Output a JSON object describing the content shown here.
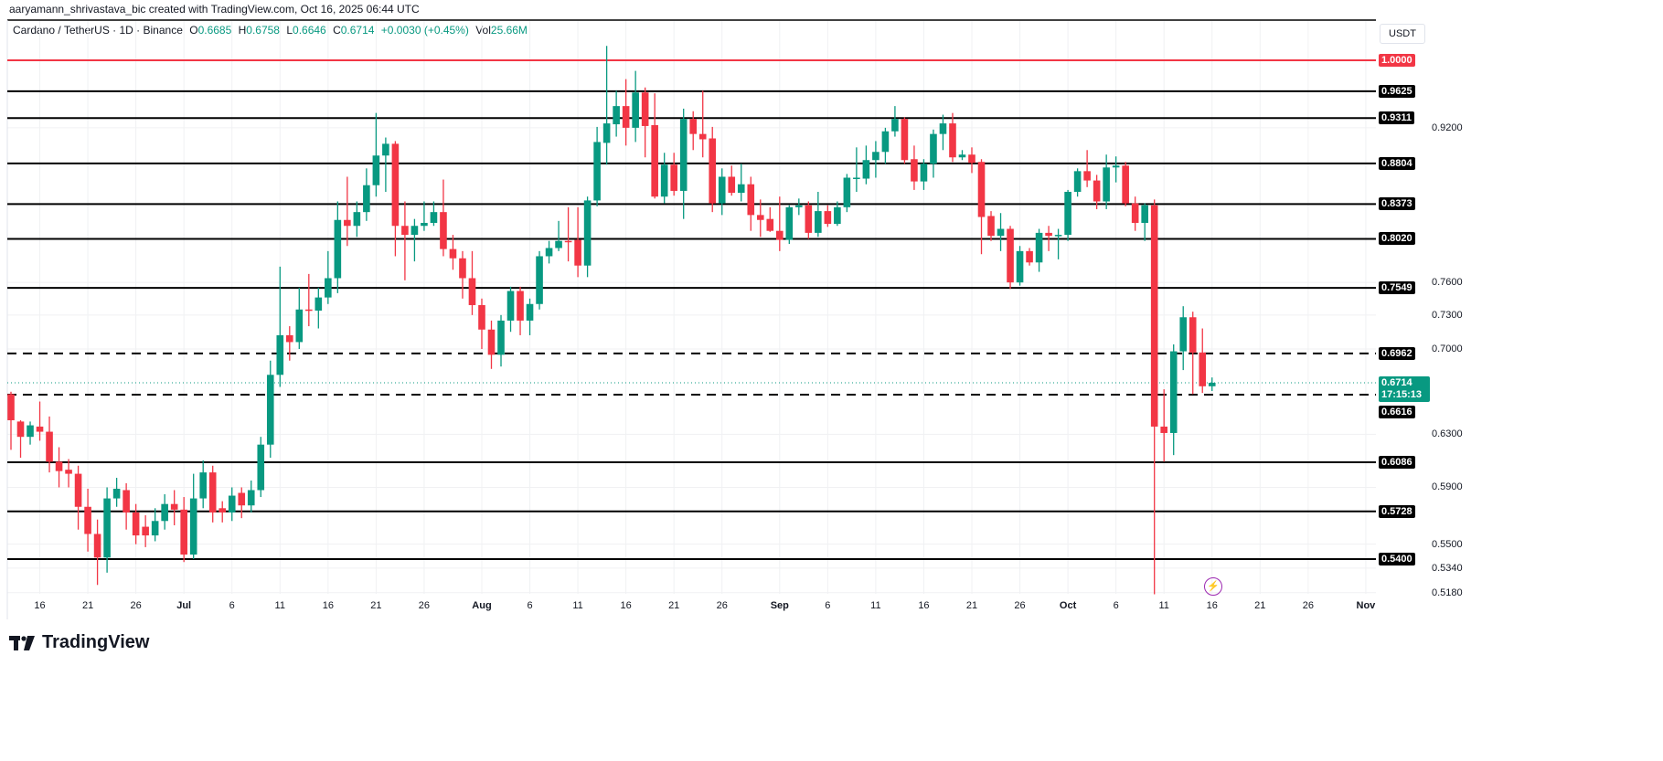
{
  "credit": "aaryamann_shrivastava_bic created with TradingView.com, Oct 16, 2025 06:44 UTC",
  "legend": {
    "symbol": "Cardano / TetherUS · 1D · Binance",
    "o_label": "O",
    "o": "0.6685",
    "h_label": "H",
    "h": "0.6758",
    "l_label": "L",
    "l": "0.6646",
    "c_label": "C",
    "c": "0.6714",
    "change": "+0.0030 (+0.45%)",
    "vol_label": "Vol",
    "vol": "25.66M"
  },
  "currency_button": "USDT",
  "current_price": {
    "value": "0.6714",
    "countdown": "17:15:13",
    "color": "#089981"
  },
  "logo_text": "TradingView",
  "alert_icon": "lightning-icon",
  "chart_data": {
    "type": "candlestick",
    "title": "",
    "scale": "log",
    "ylim": [
      0.518,
      1.04
    ],
    "grid": true,
    "colors": {
      "up": "#089981",
      "down": "#F23645"
    },
    "columns": [
      "date",
      "open",
      "high",
      "low",
      "close"
    ],
    "candles": [
      [
        "Jun 13",
        0.662,
        0.664,
        0.618,
        0.641
      ],
      [
        "Jun 14",
        0.64,
        0.641,
        0.612,
        0.628
      ],
      [
        "Jun 15",
        0.628,
        0.64,
        0.622,
        0.637
      ],
      [
        "Jun 16",
        0.636,
        0.656,
        0.625,
        0.632
      ],
      [
        "Jun 17",
        0.632,
        0.644,
        0.601,
        0.609
      ],
      [
        "Jun 18",
        0.609,
        0.62,
        0.59,
        0.602
      ],
      [
        "Jun 19",
        0.603,
        0.611,
        0.59,
        0.6
      ],
      [
        "Jun 20",
        0.6,
        0.606,
        0.56,
        0.576
      ],
      [
        "Jun 21",
        0.576,
        0.589,
        0.545,
        0.557
      ],
      [
        "Jun 22",
        0.557,
        0.567,
        0.523,
        0.541
      ],
      [
        "Jun 23",
        0.541,
        0.59,
        0.531,
        0.582
      ],
      [
        "Jun 24",
        0.582,
        0.597,
        0.576,
        0.589
      ],
      [
        "Jun 25",
        0.588,
        0.593,
        0.56,
        0.572
      ],
      [
        "Jun 26",
        0.572,
        0.578,
        0.55,
        0.556
      ],
      [
        "Jun 27",
        0.562,
        0.57,
        0.548,
        0.556
      ],
      [
        "Jun 28",
        0.556,
        0.575,
        0.552,
        0.566
      ],
      [
        "Jun 29",
        0.566,
        0.585,
        0.56,
        0.578
      ],
      [
        "Jun 30",
        0.578,
        0.588,
        0.563,
        0.574
      ],
      [
        "Jul 1",
        0.574,
        0.583,
        0.538,
        0.543
      ],
      [
        "Jul 2",
        0.543,
        0.6,
        0.54,
        0.582
      ],
      [
        "Jul 3",
        0.582,
        0.61,
        0.575,
        0.601
      ],
      [
        "Jul 4",
        0.601,
        0.606,
        0.565,
        0.572
      ],
      [
        "Jul 5",
        0.575,
        0.58,
        0.565,
        0.572
      ],
      [
        "Jul 6",
        0.572,
        0.59,
        0.566,
        0.584
      ],
      [
        "Jul 7",
        0.586,
        0.59,
        0.568,
        0.577
      ],
      [
        "Jul 8",
        0.577,
        0.595,
        0.572,
        0.588
      ],
      [
        "Jul 9",
        0.588,
        0.628,
        0.583,
        0.622
      ],
      [
        "Jul 10",
        0.622,
        0.69,
        0.612,
        0.678
      ],
      [
        "Jul 11",
        0.678,
        0.775,
        0.668,
        0.712
      ],
      [
        "Jul 12",
        0.712,
        0.72,
        0.69,
        0.706
      ],
      [
        "Jul 13",
        0.706,
        0.755,
        0.7,
        0.735
      ],
      [
        "Jul 14",
        0.735,
        0.768,
        0.72,
        0.734
      ],
      [
        "Jul 15",
        0.734,
        0.755,
        0.718,
        0.746
      ],
      [
        "Jul 16",
        0.746,
        0.79,
        0.74,
        0.764
      ],
      [
        "Jul 17",
        0.764,
        0.84,
        0.75,
        0.821
      ],
      [
        "Jul 18",
        0.821,
        0.866,
        0.795,
        0.815
      ],
      [
        "Jul 19",
        0.815,
        0.84,
        0.804,
        0.829
      ],
      [
        "Jul 20",
        0.829,
        0.875,
        0.82,
        0.857
      ],
      [
        "Jul 21",
        0.857,
        0.937,
        0.845,
        0.889
      ],
      [
        "Jul 22",
        0.889,
        0.909,
        0.85,
        0.902
      ],
      [
        "Jul 23",
        0.902,
        0.905,
        0.785,
        0.815
      ],
      [
        "Jul 24",
        0.815,
        0.84,
        0.762,
        0.806
      ],
      [
        "Jul 25",
        0.806,
        0.822,
        0.78,
        0.815
      ],
      [
        "Jul 26",
        0.815,
        0.84,
        0.81,
        0.818
      ],
      [
        "Jul 27",
        0.818,
        0.84,
        0.815,
        0.829
      ],
      [
        "Jul 28",
        0.829,
        0.863,
        0.785,
        0.792
      ],
      [
        "Jul 29",
        0.792,
        0.806,
        0.772,
        0.783
      ],
      [
        "Jul 30",
        0.783,
        0.79,
        0.745,
        0.764
      ],
      [
        "Jul 31",
        0.764,
        0.79,
        0.73,
        0.739
      ],
      [
        "Aug 1",
        0.739,
        0.745,
        0.7,
        0.717
      ],
      [
        "Aug 2",
        0.717,
        0.725,
        0.683,
        0.695
      ],
      [
        "Aug 3",
        0.695,
        0.73,
        0.685,
        0.725
      ],
      [
        "Aug 4",
        0.725,
        0.756,
        0.715,
        0.752
      ],
      [
        "Aug 5",
        0.752,
        0.756,
        0.712,
        0.725
      ],
      [
        "Aug 6",
        0.725,
        0.745,
        0.712,
        0.74
      ],
      [
        "Aug 7",
        0.74,
        0.79,
        0.735,
        0.785
      ],
      [
        "Aug 8",
        0.785,
        0.8,
        0.778,
        0.793
      ],
      [
        "Aug 9",
        0.793,
        0.82,
        0.79,
        0.8
      ],
      [
        "Aug 10",
        0.8,
        0.834,
        0.78,
        0.799
      ],
      [
        "Aug 11",
        0.801,
        0.834,
        0.765,
        0.776
      ],
      [
        "Aug 12",
        0.776,
        0.845,
        0.765,
        0.841
      ],
      [
        "Aug 13",
        0.841,
        0.921,
        0.835,
        0.904
      ],
      [
        "Aug 14",
        0.903,
        1.018,
        0.879,
        0.925
      ],
      [
        "Aug 15",
        0.924,
        0.963,
        0.91,
        0.945
      ],
      [
        "Aug 16",
        0.945,
        0.977,
        0.9,
        0.92
      ],
      [
        "Aug 17",
        0.92,
        0.987,
        0.904,
        0.961
      ],
      [
        "Aug 18",
        0.961,
        0.967,
        0.887,
        0.922
      ],
      [
        "Aug 19",
        0.923,
        0.96,
        0.843,
        0.845
      ],
      [
        "Aug 20",
        0.845,
        0.892,
        0.838,
        0.879
      ],
      [
        "Aug 21",
        0.879,
        0.892,
        0.846,
        0.851
      ],
      [
        "Aug 22",
        0.851,
        0.942,
        0.822,
        0.93
      ],
      [
        "Aug 23",
        0.93,
        0.939,
        0.895,
        0.913
      ],
      [
        "Aug 24",
        0.913,
        0.963,
        0.887,
        0.907
      ],
      [
        "Aug 25",
        0.908,
        0.921,
        0.829,
        0.838
      ],
      [
        "Aug 26",
        0.838,
        0.875,
        0.826,
        0.866
      ],
      [
        "Aug 27",
        0.866,
        0.878,
        0.846,
        0.849
      ],
      [
        "Aug 28",
        0.849,
        0.88,
        0.84,
        0.858
      ],
      [
        "Aug 29",
        0.858,
        0.866,
        0.81,
        0.826
      ],
      [
        "Aug 30",
        0.826,
        0.842,
        0.804,
        0.821
      ],
      [
        "Aug 31",
        0.822,
        0.834,
        0.809,
        0.81
      ],
      [
        "Sep 1",
        0.81,
        0.845,
        0.79,
        0.801
      ],
      [
        "Sep 2",
        0.801,
        0.836,
        0.797,
        0.834
      ],
      [
        "Sep 3",
        0.834,
        0.843,
        0.826,
        0.836
      ],
      [
        "Sep 4",
        0.836,
        0.84,
        0.802,
        0.808
      ],
      [
        "Sep 5",
        0.808,
        0.85,
        0.804,
        0.83
      ],
      [
        "Sep 6",
        0.83,
        0.836,
        0.814,
        0.817
      ],
      [
        "Sep 7",
        0.817,
        0.84,
        0.815,
        0.834
      ],
      [
        "Sep 8",
        0.834,
        0.869,
        0.829,
        0.865
      ],
      [
        "Sep 9",
        0.864,
        0.898,
        0.85,
        0.865
      ],
      [
        "Sep 10",
        0.864,
        0.9,
        0.858,
        0.884
      ],
      [
        "Sep 11",
        0.884,
        0.905,
        0.865,
        0.893
      ],
      [
        "Sep 12",
        0.893,
        0.92,
        0.88,
        0.916
      ],
      [
        "Sep 13",
        0.916,
        0.945,
        0.91,
        0.93
      ],
      [
        "Sep 14",
        0.93,
        0.932,
        0.88,
        0.884
      ],
      [
        "Sep 15",
        0.885,
        0.9,
        0.852,
        0.861
      ],
      [
        "Sep 16",
        0.861,
        0.885,
        0.852,
        0.88
      ],
      [
        "Sep 17",
        0.88,
        0.918,
        0.865,
        0.913
      ],
      [
        "Sep 18",
        0.913,
        0.935,
        0.895,
        0.925
      ],
      [
        "Sep 19",
        0.925,
        0.937,
        0.882,
        0.887
      ],
      [
        "Sep 20",
        0.887,
        0.895,
        0.884,
        0.89
      ],
      [
        "Sep 21",
        0.89,
        0.898,
        0.87,
        0.881
      ],
      [
        "Sep 22",
        0.882,
        0.885,
        0.787,
        0.824
      ],
      [
        "Sep 23",
        0.825,
        0.83,
        0.8,
        0.805
      ],
      [
        "Sep 24",
        0.805,
        0.828,
        0.79,
        0.812
      ],
      [
        "Sep 25",
        0.812,
        0.815,
        0.754,
        0.76
      ],
      [
        "Sep 26",
        0.76,
        0.795,
        0.757,
        0.79
      ],
      [
        "Sep 27",
        0.79,
        0.793,
        0.776,
        0.779
      ],
      [
        "Sep 28",
        0.779,
        0.812,
        0.77,
        0.808
      ],
      [
        "Sep 29",
        0.808,
        0.815,
        0.79,
        0.805
      ],
      [
        "Sep 30",
        0.805,
        0.812,
        0.782,
        0.806
      ],
      [
        "Oct 1",
        0.806,
        0.852,
        0.8,
        0.85
      ],
      [
        "Oct 2",
        0.85,
        0.875,
        0.845,
        0.872
      ],
      [
        "Oct 3",
        0.872,
        0.895,
        0.855,
        0.862
      ],
      [
        "Oct 4",
        0.862,
        0.868,
        0.832,
        0.84
      ],
      [
        "Oct 5",
        0.84,
        0.89,
        0.832,
        0.876
      ],
      [
        "Oct 6",
        0.876,
        0.888,
        0.86,
        0.878
      ],
      [
        "Oct 7",
        0.878,
        0.882,
        0.835,
        0.838
      ],
      [
        "Oct 8",
        0.838,
        0.845,
        0.81,
        0.818
      ],
      [
        "Oct 9",
        0.818,
        0.838,
        0.8,
        0.836
      ],
      [
        "Oct 10",
        0.836,
        0.842,
        0.517,
        0.636
      ],
      [
        "Oct 11",
        0.636,
        0.666,
        0.609,
        0.631
      ],
      [
        "Oct 12",
        0.631,
        0.704,
        0.614,
        0.698
      ],
      [
        "Oct 13",
        0.698,
        0.738,
        0.682,
        0.728
      ],
      [
        "Oct 14",
        0.728,
        0.733,
        0.662,
        0.697
      ],
      [
        "Oct 15",
        0.697,
        0.718,
        0.663,
        0.6685
      ],
      [
        "Oct 16",
        0.6685,
        0.6758,
        0.6646,
        0.6714
      ]
    ],
    "levels": [
      {
        "value": "1.0000",
        "style": "solid",
        "color": "#F23645"
      },
      {
        "value": "0.9625",
        "style": "solid",
        "color": "#000000"
      },
      {
        "value": "0.9311",
        "style": "solid",
        "color": "#000000"
      },
      {
        "value": "0.8804",
        "style": "solid",
        "color": "#000000"
      },
      {
        "value": "0.8373",
        "style": "solid",
        "color": "#000000"
      },
      {
        "value": "0.8020",
        "style": "solid",
        "color": "#000000"
      },
      {
        "value": "0.7549",
        "style": "solid",
        "color": "#000000"
      },
      {
        "value": "0.6962",
        "style": "dashed",
        "color": "#000000"
      },
      {
        "value": "0.6616",
        "style": "dashed",
        "color": "#000000"
      },
      {
        "value": "0.6086",
        "style": "solid",
        "color": "#000000"
      },
      {
        "value": "0.5728",
        "style": "solid",
        "color": "#000000"
      },
      {
        "value": "0.5400",
        "style": "solid",
        "color": "#000000"
      }
    ],
    "y_ticks": [
      "0.9200",
      "0.7600",
      "0.7300",
      "0.7000",
      "0.6300",
      "0.5900",
      "0.5500",
      "0.5340",
      "0.5180"
    ],
    "x_ticks": [
      {
        "label": "16",
        "date": "Jun 16"
      },
      {
        "label": "21",
        "date": "Jun 21"
      },
      {
        "label": "26",
        "date": "Jun 26"
      },
      {
        "label": "Jul",
        "date": "Jul 1"
      },
      {
        "label": "6",
        "date": "Jul 6"
      },
      {
        "label": "11",
        "date": "Jul 11"
      },
      {
        "label": "16",
        "date": "Jul 16"
      },
      {
        "label": "21",
        "date": "Jul 21"
      },
      {
        "label": "26",
        "date": "Jul 26"
      },
      {
        "label": "Aug",
        "date": "Aug 1"
      },
      {
        "label": "6",
        "date": "Aug 6"
      },
      {
        "label": "11",
        "date": "Aug 11"
      },
      {
        "label": "16",
        "date": "Aug 16"
      },
      {
        "label": "21",
        "date": "Aug 21"
      },
      {
        "label": "26",
        "date": "Aug 26"
      },
      {
        "label": "Sep",
        "date": "Sep 1"
      },
      {
        "label": "6",
        "date": "Sep 6"
      },
      {
        "label": "11",
        "date": "Sep 11"
      },
      {
        "label": "16",
        "date": "Sep 16"
      },
      {
        "label": "21",
        "date": "Sep 21"
      },
      {
        "label": "26",
        "date": "Sep 26"
      },
      {
        "label": "Oct",
        "date": "Oct 1"
      },
      {
        "label": "6",
        "date": "Oct 6"
      },
      {
        "label": "11",
        "date": "Oct 11"
      },
      {
        "label": "16",
        "date": "Oct 16"
      },
      {
        "label": "21",
        "date": "Oct 21"
      },
      {
        "label": "26",
        "date": "Oct 26"
      },
      {
        "label": "Nov",
        "date": "Nov 1"
      }
    ]
  }
}
